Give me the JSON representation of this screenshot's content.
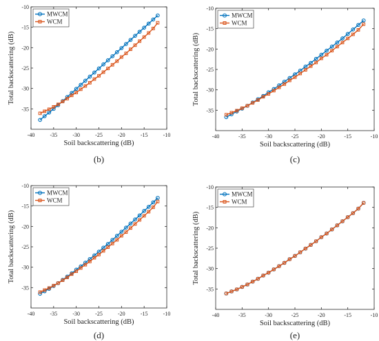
{
  "chart_data": [
    {
      "type": "line",
      "panel_label": "(b)",
      "xlabel": "Soil backscattering (dB)",
      "ylabel": "Total backscattering (dB)",
      "xlim": [
        -40,
        -10
      ],
      "ylim": [
        -40,
        -10
      ],
      "xticks": [
        -40,
        -35,
        -30,
        -25,
        -20,
        -15,
        -10
      ],
      "yticks": [
        -35,
        -30,
        -25,
        -20,
        -15,
        -10
      ],
      "legend": "top-left",
      "grid": false,
      "x": [
        -38,
        -37,
        -36,
        -35,
        -34,
        -33,
        -32,
        -31,
        -30,
        -29,
        -28,
        -27,
        -26,
        -25,
        -24,
        -23,
        -22,
        -21,
        -20,
        -19,
        -18,
        -17,
        -16,
        -15,
        -14,
        -13,
        -12
      ],
      "series": [
        {
          "name": "MWCM",
          "color": "#0072BD",
          "marker": "circle",
          "values": [
            -37.7,
            -36.8,
            -35.9,
            -35.0,
            -34.1,
            -33.1,
            -32.1,
            -31.1,
            -30.1,
            -29.1,
            -28.1,
            -27.1,
            -26.1,
            -25.1,
            -24.1,
            -23.1,
            -22.1,
            -21.1,
            -20.1,
            -19.1,
            -18.1,
            -17.1,
            -16.1,
            -15.1,
            -14.1,
            -13.1,
            -12.1
          ]
        },
        {
          "name": "WCM",
          "color": "#D95319",
          "marker": "square",
          "values": [
            -36.1,
            -35.6,
            -35.1,
            -34.5,
            -33.9,
            -33.2,
            -32.5,
            -31.7,
            -31.0,
            -30.2,
            -29.4,
            -28.6,
            -27.7,
            -26.9,
            -26.0,
            -25.1,
            -24.2,
            -23.3,
            -22.3,
            -21.4,
            -20.4,
            -19.4,
            -18.4,
            -17.4,
            -16.4,
            -15.3,
            -13.9
          ]
        }
      ]
    },
    {
      "type": "line",
      "panel_label": "(c)",
      "xlabel": "Soil backscattering (dB)",
      "ylabel": "Total backscattering (dB)",
      "xlim": [
        -40,
        -10
      ],
      "ylim": [
        -40,
        -10
      ],
      "xticks": [
        -40,
        -35,
        -30,
        -25,
        -20,
        -15,
        -10
      ],
      "yticks": [
        -35,
        -30,
        -25,
        -20,
        -15,
        -10
      ],
      "legend": "top-left",
      "grid": false,
      "x": [
        -38,
        -37,
        -36,
        -35,
        -34,
        -33,
        -32,
        -31,
        -30,
        -29,
        -28,
        -27,
        -26,
        -25,
        -24,
        -23,
        -22,
        -21,
        -20,
        -19,
        -18,
        -17,
        -16,
        -15,
        -14,
        -13,
        -12
      ],
      "series": [
        {
          "name": "MWCM",
          "color": "#0072BD",
          "marker": "circle",
          "values": [
            -36.7,
            -36.0,
            -35.3,
            -34.6,
            -33.9,
            -33.1,
            -32.3,
            -31.5,
            -30.6,
            -29.8,
            -28.9,
            -28.0,
            -27.1,
            -26.2,
            -25.3,
            -24.3,
            -23.4,
            -22.4,
            -21.4,
            -20.4,
            -19.4,
            -18.4,
            -17.4,
            -16.3,
            -15.2,
            -14.1,
            -13.0
          ]
        },
        {
          "name": "WCM",
          "color": "#D95319",
          "marker": "square",
          "values": [
            -36.1,
            -35.6,
            -35.1,
            -34.5,
            -33.9,
            -33.2,
            -32.5,
            -31.7,
            -31.0,
            -30.2,
            -29.4,
            -28.6,
            -27.7,
            -26.9,
            -26.0,
            -25.1,
            -24.2,
            -23.3,
            -22.3,
            -21.4,
            -20.4,
            -19.4,
            -18.4,
            -17.4,
            -16.4,
            -15.3,
            -13.9
          ]
        }
      ]
    },
    {
      "type": "line",
      "panel_label": "(d)",
      "xlabel": "Soil backscattering (dB)",
      "ylabel": "Total backscattering (dB)",
      "xlim": [
        -40,
        -10
      ],
      "ylim": [
        -40,
        -10
      ],
      "xticks": [
        -40,
        -35,
        -30,
        -25,
        -20,
        -15,
        -10
      ],
      "yticks": [
        -35,
        -30,
        -25,
        -20,
        -15,
        -10
      ],
      "legend": "top-left",
      "grid": false,
      "x": [
        -38,
        -37,
        -36,
        -35,
        -34,
        -33,
        -32,
        -31,
        -30,
        -29,
        -28,
        -27,
        -26,
        -25,
        -24,
        -23,
        -22,
        -21,
        -20,
        -19,
        -18,
        -17,
        -16,
        -15,
        -14,
        -13,
        -12
      ],
      "series": [
        {
          "name": "MWCM",
          "color": "#0072BD",
          "marker": "circle",
          "values": [
            -36.5,
            -35.9,
            -35.3,
            -34.6,
            -33.9,
            -33.1,
            -32.3,
            -31.5,
            -30.6,
            -29.8,
            -28.9,
            -28.0,
            -27.1,
            -26.2,
            -25.2,
            -24.3,
            -23.3,
            -22.3,
            -21.3,
            -20.3,
            -19.3,
            -18.3,
            -17.3,
            -16.2,
            -15.2,
            -14.1,
            -13.0
          ]
        },
        {
          "name": "WCM",
          "color": "#D95319",
          "marker": "square",
          "values": [
            -36.1,
            -35.6,
            -35.1,
            -34.5,
            -33.9,
            -33.2,
            -32.5,
            -31.7,
            -31.0,
            -30.2,
            -29.4,
            -28.6,
            -27.7,
            -26.9,
            -26.0,
            -25.1,
            -24.2,
            -23.3,
            -22.3,
            -21.4,
            -20.4,
            -19.4,
            -18.4,
            -17.4,
            -16.4,
            -15.3,
            -13.9
          ]
        }
      ]
    },
    {
      "type": "line",
      "panel_label": "(e)",
      "xlabel": "Soil backscattering (dB)",
      "ylabel": "Total backscattering (dB)",
      "xlim": [
        -40,
        -10
      ],
      "ylim": [
        -40,
        -10
      ],
      "xticks": [
        -40,
        -35,
        -30,
        -25,
        -20,
        -15,
        -10
      ],
      "yticks": [
        -35,
        -30,
        -25,
        -20,
        -15,
        -10
      ],
      "legend": "top-left",
      "grid": false,
      "x": [
        -38,
        -37,
        -36,
        -35,
        -34,
        -33,
        -32,
        -31,
        -30,
        -29,
        -28,
        -27,
        -26,
        -25,
        -24,
        -23,
        -22,
        -21,
        -20,
        -19,
        -18,
        -17,
        -16,
        -15,
        -14,
        -13,
        -12
      ],
      "series": [
        {
          "name": "MWCM",
          "color": "#0072BD",
          "marker": "circle",
          "values": [
            -36.1,
            -35.6,
            -35.1,
            -34.5,
            -33.9,
            -33.2,
            -32.5,
            -31.7,
            -31.0,
            -30.2,
            -29.4,
            -28.6,
            -27.7,
            -26.9,
            -26.0,
            -25.1,
            -24.2,
            -23.3,
            -22.3,
            -21.4,
            -20.4,
            -19.4,
            -18.4,
            -17.4,
            -16.4,
            -15.3,
            -13.9
          ]
        },
        {
          "name": "WCM",
          "color": "#D95319",
          "marker": "square",
          "values": [
            -36.1,
            -35.6,
            -35.1,
            -34.5,
            -33.9,
            -33.2,
            -32.5,
            -31.7,
            -31.0,
            -30.2,
            -29.4,
            -28.6,
            -27.7,
            -26.9,
            -26.0,
            -25.1,
            -24.2,
            -23.3,
            -22.3,
            -21.4,
            -20.4,
            -19.4,
            -18.4,
            -17.4,
            -16.4,
            -15.3,
            -13.9
          ]
        }
      ]
    }
  ]
}
